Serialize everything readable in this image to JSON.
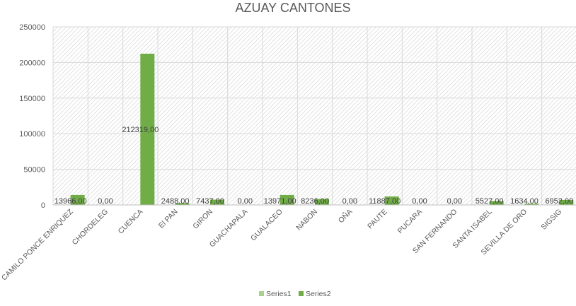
{
  "chart_data": {
    "type": "bar",
    "title": "AZUAY CANTONES",
    "xlabel": "",
    "ylabel": "",
    "ylim": [
      0,
      250000
    ],
    "yticks": [
      0,
      50000,
      100000,
      150000,
      200000,
      250000
    ],
    "grid": true,
    "legend": "bottom",
    "categories": [
      "CAMILO PONCE ENRIQUEZ",
      "CHORDELEG",
      "CUENCA",
      "El PAN",
      "GIRON",
      "GUACHAPALA",
      "GUALACEO",
      "NABON",
      "OÑA",
      "PAUTE",
      "PUCARA",
      "SAN FERNANDO",
      "SANTA ISABEL",
      "SEVILLA DE ORO",
      "SIGSIG"
    ],
    "series": [
      {
        "name": "Series1",
        "color": "#a9d18e",
        "values": [
          0,
          0,
          0,
          0,
          0,
          0,
          0,
          0,
          0,
          0,
          0,
          0,
          0,
          0,
          0
        ]
      },
      {
        "name": "Series2",
        "color": "#70ad47",
        "values": [
          13966,
          0,
          212319,
          2488,
          7437,
          0,
          13971,
          8236,
          0,
          11887,
          0,
          0,
          5527,
          1634,
          6952
        ],
        "data_labels": [
          "13966,00",
          "0,00",
          "212319,00",
          "2488,00",
          "7437,00",
          "0,00",
          "13971,00",
          "8236,00",
          "0,00",
          "11887,00",
          "0,00",
          "0,00",
          "5527,00",
          "1634,00",
          "6952,00"
        ]
      }
    ]
  }
}
